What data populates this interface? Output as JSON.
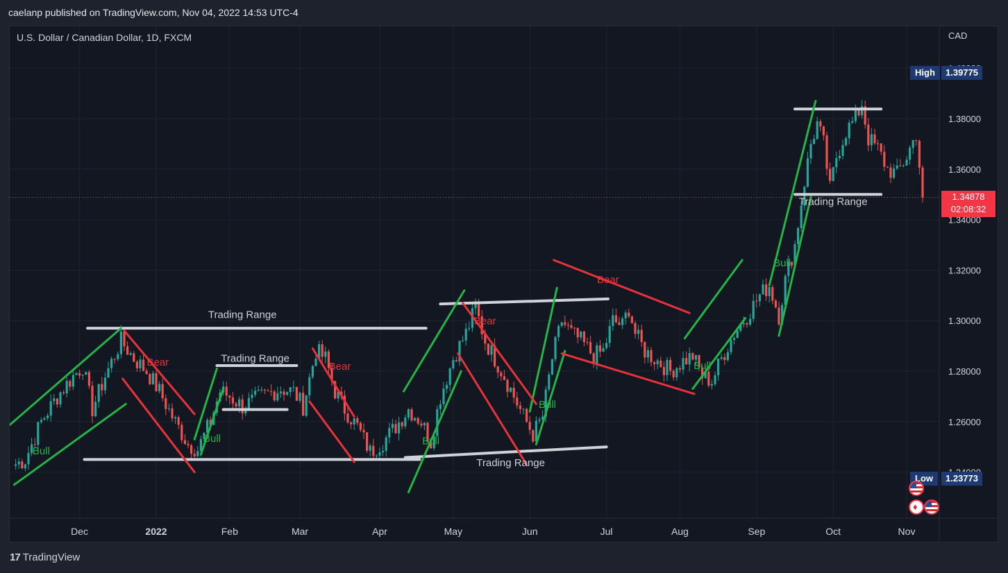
{
  "header": {
    "publisher": "caelanp published on TradingView.com, Nov 04, 2022 14:53 UTC-4"
  },
  "chart_data": {
    "type": "candlestick",
    "title": "U.S. Dollar / Canadian Dollar, 1D, FXCM",
    "currency": "CAD",
    "ylim": [
      1.228,
      1.412
    ],
    "y_ticks": [
      "1.24000",
      "1.26000",
      "1.28000",
      "1.30000",
      "1.32000",
      "1.34000",
      "1.36000",
      "1.38000",
      "1.40000"
    ],
    "x_ticks": [
      {
        "label": "Dec",
        "bold": false,
        "idx": 21
      },
      {
        "label": "2022",
        "bold": true,
        "idx": 45
      },
      {
        "label": "Feb",
        "bold": false,
        "idx": 68
      },
      {
        "label": "Mar",
        "bold": false,
        "idx": 90
      },
      {
        "label": "Apr",
        "bold": false,
        "idx": 115
      },
      {
        "label": "May",
        "bold": false,
        "idx": 138
      },
      {
        "label": "Jun",
        "bold": false,
        "idx": 162
      },
      {
        "label": "Jul",
        "bold": false,
        "idx": 186
      },
      {
        "label": "Aug",
        "bold": false,
        "idx": 209
      },
      {
        "label": "Sep",
        "bold": false,
        "idx": 233
      },
      {
        "label": "Oct",
        "bold": false,
        "idx": 257
      },
      {
        "label": "Nov",
        "bold": false,
        "idx": 280
      }
    ],
    "high": {
      "label": "High",
      "value": "1.39775"
    },
    "low": {
      "label": "Low",
      "value": "1.23773"
    },
    "last": {
      "value": "1.34878",
      "countdown": "02:08:32"
    },
    "close_path": [
      [
        0,
        1.2425
      ],
      [
        4,
        1.245
      ],
      [
        9,
        1.26
      ],
      [
        14,
        1.27
      ],
      [
        19,
        1.278
      ],
      [
        22,
        1.282
      ],
      [
        25,
        1.265
      ],
      [
        29,
        1.278
      ],
      [
        34,
        1.292
      ],
      [
        38,
        1.285
      ],
      [
        42,
        1.28
      ],
      [
        46,
        1.272
      ],
      [
        50,
        1.262
      ],
      [
        55,
        1.251
      ],
      [
        58,
        1.249
      ],
      [
        62,
        1.26
      ],
      [
        65,
        1.272
      ],
      [
        68,
        1.27
      ],
      [
        72,
        1.266
      ],
      [
        78,
        1.27
      ],
      [
        84,
        1.273
      ],
      [
        88,
        1.272
      ],
      [
        91,
        1.266
      ],
      [
        95,
        1.288
      ],
      [
        98,
        1.285
      ],
      [
        101,
        1.272
      ],
      [
        104,
        1.265
      ],
      [
        108,
        1.258
      ],
      [
        112,
        1.248
      ],
      [
        116,
        1.252
      ],
      [
        120,
        1.258
      ],
      [
        124,
        1.265
      ],
      [
        128,
        1.26
      ],
      [
        131,
        1.252
      ],
      [
        134,
        1.27
      ],
      [
        138,
        1.285
      ],
      [
        142,
        1.295
      ],
      [
        145,
        1.305
      ],
      [
        148,
        1.292
      ],
      [
        151,
        1.285
      ],
      [
        154,
        1.278
      ],
      [
        157,
        1.27
      ],
      [
        160,
        1.262
      ],
      [
        163,
        1.255
      ],
      [
        166,
        1.262
      ],
      [
        169,
        1.285
      ],
      [
        172,
        1.3
      ],
      [
        175,
        1.295
      ],
      [
        178,
        1.292
      ],
      [
        182,
        1.286
      ],
      [
        185,
        1.288
      ],
      [
        188,
        1.3
      ],
      [
        191,
        1.298
      ],
      [
        193,
        1.305
      ],
      [
        195,
        1.295
      ],
      [
        198,
        1.288
      ],
      [
        202,
        1.284
      ],
      [
        206,
        1.28
      ],
      [
        210,
        1.284
      ],
      [
        213,
        1.286
      ],
      [
        216,
        1.278
      ],
      [
        219,
        1.276
      ],
      [
        222,
        1.285
      ],
      [
        226,
        1.295
      ],
      [
        230,
        1.302
      ],
      [
        234,
        1.31
      ],
      [
        237,
        1.314
      ],
      [
        240,
        1.302
      ],
      [
        242,
        1.316
      ],
      [
        245,
        1.33
      ],
      [
        248,
        1.355
      ],
      [
        250,
        1.37
      ],
      [
        252,
        1.378
      ],
      [
        254,
        1.37
      ],
      [
        256,
        1.352
      ],
      [
        258,
        1.365
      ],
      [
        261,
        1.375
      ],
      [
        264,
        1.38
      ],
      [
        266,
        1.386
      ],
      [
        268,
        1.372
      ],
      [
        271,
        1.368
      ],
      [
        274,
        1.36
      ],
      [
        277,
        1.358
      ],
      [
        280,
        1.365
      ],
      [
        283,
        1.374
      ],
      [
        285,
        1.3488
      ]
    ],
    "annotations": [
      {
        "text": "Bull",
        "color": "green",
        "idx": 9,
        "price": 1.247
      },
      {
        "text": "Bear",
        "color": "red",
        "idx": 45.5,
        "price": 1.2822
      },
      {
        "text": "Bull",
        "color": "green",
        "idx": 62.5,
        "price": 1.252
      },
      {
        "text": "Trading Range",
        "color": "white",
        "idx": 72,
        "price": 1.301
      },
      {
        "text": "Trading Range",
        "color": "white",
        "idx": 76,
        "price": 1.2837
      },
      {
        "text": "Bear",
        "color": "red",
        "idx": 102.5,
        "price": 1.2805
      },
      {
        "text": "Bull",
        "color": "green",
        "idx": 131,
        "price": 1.251
      },
      {
        "text": "Bear",
        "color": "red",
        "idx": 148,
        "price": 1.2986
      },
      {
        "text": "Trading Range",
        "color": "white",
        "idx": 156,
        "price": 1.2423
      },
      {
        "text": "Bull",
        "color": "green",
        "idx": 167.5,
        "price": 1.2655
      },
      {
        "text": "Bear",
        "color": "red",
        "idx": 186.5,
        "price": 1.3149
      },
      {
        "text": "Bull",
        "color": "green",
        "idx": 216,
        "price": 1.2808
      },
      {
        "text": "Bull",
        "color": "green",
        "idx": 241,
        "price": 1.3215
      },
      {
        "text": "Trading Range",
        "color": "white",
        "idx": 257,
        "price": 1.3458
      }
    ],
    "lines": [
      {
        "color": "white",
        "points": [
          [
            23.5,
            1.297
          ],
          [
            129.5,
            1.297
          ]
        ]
      },
      {
        "color": "white",
        "points": [
          [
            22.5,
            1.245
          ],
          [
            127.5,
            1.245
          ]
        ]
      },
      {
        "color": "white",
        "points": [
          [
            64,
            1.2822
          ],
          [
            89,
            1.2822
          ]
        ]
      },
      {
        "color": "white",
        "points": [
          [
            66,
            1.2648
          ],
          [
            86,
            1.2648
          ]
        ]
      },
      {
        "color": "white",
        "points": [
          [
            134,
            1.3066
          ],
          [
            186.5,
            1.3086
          ]
        ]
      },
      {
        "color": "white",
        "points": [
          [
            123,
            1.2458
          ],
          [
            186,
            1.25
          ]
        ]
      },
      {
        "color": "white",
        "points": [
          [
            245,
            1.3838
          ],
          [
            272,
            1.3838
          ]
        ]
      },
      {
        "color": "white",
        "points": [
          [
            245,
            1.35
          ],
          [
            272,
            1.35
          ]
        ]
      },
      {
        "color": "green",
        "points": [
          [
            -1.5,
            1.258
          ],
          [
            34,
            1.297
          ]
        ]
      },
      {
        "color": "green",
        "points": [
          [
            0.5,
            1.235
          ],
          [
            35.5,
            1.267
          ]
        ]
      },
      {
        "color": "green",
        "points": [
          [
            57,
            1.253
          ],
          [
            64,
            1.281
          ]
        ]
      },
      {
        "color": "green",
        "points": [
          [
            59,
            1.247
          ],
          [
            66,
            1.273
          ]
        ]
      },
      {
        "color": "green",
        "points": [
          [
            124,
            1.232
          ],
          [
            140.5,
            1.28
          ]
        ]
      },
      {
        "color": "green",
        "points": [
          [
            122.5,
            1.272
          ],
          [
            141.5,
            1.312
          ]
        ]
      },
      {
        "color": "green",
        "points": [
          [
            164,
            1.251
          ],
          [
            173,
            1.288
          ]
        ]
      },
      {
        "color": "green",
        "points": [
          [
            162,
            1.264
          ],
          [
            170.5,
            1.313
          ]
        ]
      },
      {
        "color": "green",
        "points": [
          [
            213,
            1.273
          ],
          [
            229.5,
            1.301
          ]
        ]
      },
      {
        "color": "green",
        "points": [
          [
            210.5,
            1.293
          ],
          [
            228.5,
            1.324
          ]
        ]
      },
      {
        "color": "green",
        "points": [
          [
            240,
            1.294
          ],
          [
            250,
            1.349
          ]
        ]
      },
      {
        "color": "green",
        "points": [
          [
            237,
            1.314
          ],
          [
            251.5,
            1.387
          ]
        ]
      },
      {
        "color": "red",
        "points": [
          [
            35,
            1.296
          ],
          [
            57,
            1.263
          ]
        ]
      },
      {
        "color": "red",
        "points": [
          [
            34.5,
            1.277
          ],
          [
            57,
            1.24
          ]
        ]
      },
      {
        "color": "red",
        "points": [
          [
            94,
            1.289
          ],
          [
            107,
            1.262
          ]
        ]
      },
      {
        "color": "red",
        "points": [
          [
            93,
            1.268
          ],
          [
            107,
            1.244
          ]
        ]
      },
      {
        "color": "red",
        "points": [
          [
            141,
            1.307
          ],
          [
            164,
            1.267
          ]
        ]
      },
      {
        "color": "red",
        "points": [
          [
            139.5,
            1.287
          ],
          [
            161,
            1.243
          ]
        ]
      },
      {
        "color": "red",
        "points": [
          [
            169.5,
            1.324
          ],
          [
            212,
            1.303
          ]
        ]
      },
      {
        "color": "red",
        "points": [
          [
            172,
            1.287
          ],
          [
            213.5,
            1.271
          ]
        ]
      }
    ]
  }
}
